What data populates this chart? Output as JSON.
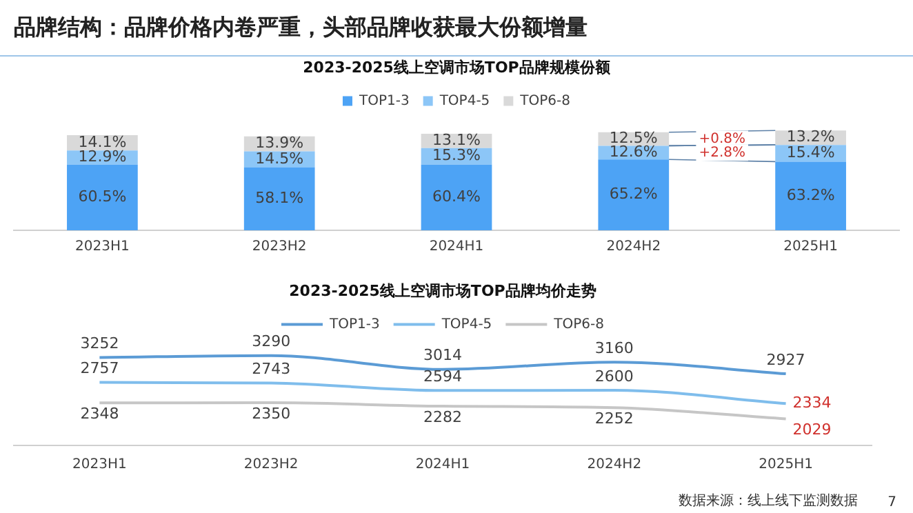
{
  "chart_data": [
    {
      "type": "other",
      "title": "品牌结构：品牌价格内卷严重，头部品牌收获最大份额增量"
    },
    {
      "type": "bar",
      "title": "2023-2025线上空调市场TOP品牌规模份额",
      "stacked": true,
      "legend": "top",
      "categories": [
        "2023H1",
        "2023H2",
        "2024H1",
        "2024H2",
        "2025H1"
      ],
      "series": [
        {
          "name": "TOP1-3",
          "color": "#4da3f5",
          "values": [
            60.5,
            58.1,
            60.4,
            65.2,
            63.2
          ],
          "value_labels": [
            "60.5%",
            "58.1%",
            "60.4%",
            "65.2%",
            "63.2%"
          ]
        },
        {
          "name": "TOP4-5",
          "color": "#8cc6f7",
          "values": [
            12.9,
            14.5,
            15.3,
            12.6,
            15.4
          ],
          "value_labels": [
            "12.9%",
            "14.5%",
            "15.3%",
            "12.6%",
            "15.4%"
          ]
        },
        {
          "name": "TOP6-8",
          "color": "#d9d9d9",
          "values": [
            14.1,
            13.9,
            13.1,
            12.5,
            13.2
          ],
          "value_labels": [
            "14.1%",
            "13.9%",
            "13.1%",
            "12.5%",
            "13.2%"
          ]
        }
      ],
      "annotations": [
        "+0.8%",
        "+2.8%"
      ]
    },
    {
      "type": "line",
      "title": "2023-2025线上空调市场TOP品牌均价走势",
      "legend": "top",
      "marker": "none",
      "data_labels": true,
      "categories": [
        "2023H1",
        "2023H2",
        "2024H1",
        "2024H2",
        "2025H1"
      ],
      "series": [
        {
          "name": "TOP1-3",
          "color": "#5b9bd5",
          "values": [
            3252,
            3290,
            3014,
            3160,
            2927
          ]
        },
        {
          "name": "TOP4-5",
          "color": "#7fbdec",
          "values": [
            2757,
            2743,
            2594,
            2600,
            2334
          ]
        },
        {
          "name": "TOP6-8",
          "color": "#c6c6c6",
          "values": [
            2348,
            2350,
            2282,
            2252,
            2029
          ]
        }
      ],
      "annotations": [
        "数据来源：线上线下监测数据",
        "7"
      ]
    }
  ]
}
